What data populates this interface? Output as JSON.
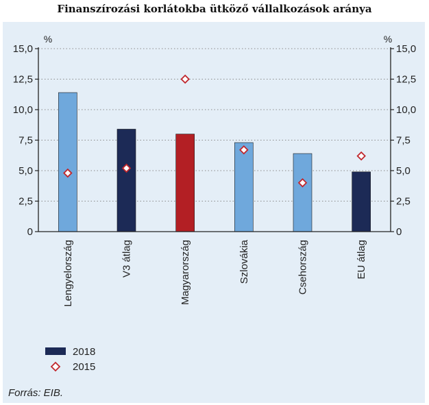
{
  "title": "Finanszírozási korlátokba ütköző vállalkozások aránya",
  "source": "Forrás: EIB.",
  "chart_data": {
    "type": "bar",
    "categories": [
      "Lengyelország",
      "V3 átlag",
      "Magyarország",
      "Szlovákia",
      "Csehország",
      "EU átlag"
    ],
    "series": [
      {
        "name": "2018",
        "type": "bar",
        "values": [
          11.4,
          8.4,
          8.0,
          7.3,
          6.4,
          4.9
        ]
      },
      {
        "name": "2015",
        "type": "scatter",
        "marker": "diamond",
        "values": [
          4.8,
          5.2,
          12.5,
          6.7,
          4.0,
          6.2
        ]
      }
    ],
    "bar_colors": [
      "#6fa8dc",
      "#1c2a56",
      "#b31f24",
      "#6fa8dc",
      "#6fa8dc",
      "#1c2a56"
    ],
    "legend_bar_color": "#1c2a56",
    "marker_color": "#c0272d",
    "y_unit": "%",
    "ylim": [
      0,
      15
    ],
    "yticks": [
      "15,0",
      "12,5",
      "10,0",
      "7,5",
      "5,0",
      "2,5",
      "0"
    ],
    "ytick_values": [
      15,
      12.5,
      10,
      7.5,
      5,
      2.5,
      0
    ],
    "grid": true,
    "legend_placement": "bottom-left",
    "dual_y_axis": true
  }
}
